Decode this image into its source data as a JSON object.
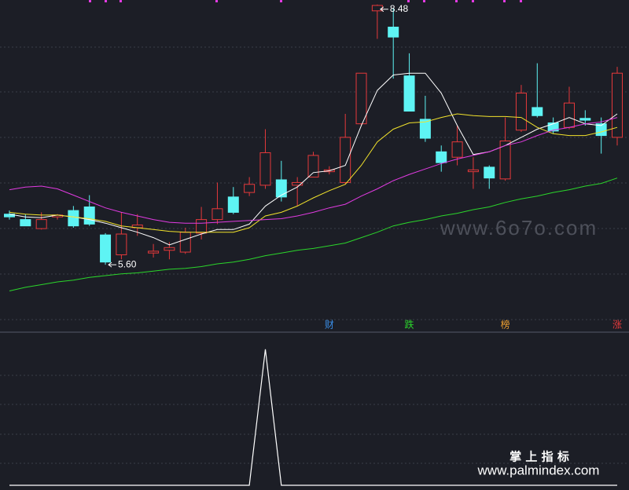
{
  "chart_data": {
    "type": "candlestick",
    "open": [
      6.16,
      6.1,
      6.0,
      6.13,
      6.2,
      6.24,
      5.93,
      5.71,
      6.01,
      5.73,
      5.76,
      5.74,
      5.95,
      6.1,
      6.35,
      6.4,
      6.48,
      6.54,
      6.48,
      6.57,
      6.63,
      6.51,
      7.16,
      8.41,
      8.23,
      7.69,
      7.21,
      6.85,
      6.79,
      6.63,
      6.68,
      6.55,
      7.09,
      7.34,
      7.17,
      7.12,
      7.22,
      7.16,
      7.01
    ],
    "high": [
      6.2,
      6.16,
      6.18,
      6.16,
      6.25,
      6.37,
      5.95,
      6.18,
      6.16,
      5.83,
      5.85,
      6.01,
      6.24,
      6.51,
      6.46,
      6.57,
      7.1,
      6.75,
      6.57,
      6.85,
      6.69,
      7.27,
      7.72,
      8.48,
      8.44,
      7.94,
      7.47,
      6.92,
      7.14,
      6.79,
      6.7,
      7.23,
      7.59,
      7.83,
      7.23,
      7.57,
      7.31,
      7.23,
      7.79
    ],
    "low": [
      6.1,
      6.03,
      5.99,
      6.1,
      6.01,
      6.03,
      5.6,
      5.66,
      5.92,
      5.68,
      5.66,
      5.72,
      5.88,
      6.05,
      6.16,
      6.36,
      6.44,
      6.3,
      6.25,
      6.57,
      6.6,
      6.49,
      7.14,
      8.1,
      7.66,
      7.3,
      6.96,
      6.63,
      6.7,
      6.44,
      6.44,
      6.53,
      7.07,
      7.23,
      7.05,
      7.1,
      7.14,
      6.83,
      6.92
    ],
    "close": [
      6.13,
      6.03,
      6.1,
      6.15,
      6.03,
      6.05,
      5.63,
      5.94,
      6.04,
      5.75,
      5.79,
      5.96,
      6.1,
      6.22,
      6.18,
      6.49,
      6.84,
      6.35,
      6.51,
      6.81,
      6.65,
      7.01,
      7.72,
      8.47,
      8.12,
      7.3,
      7.0,
      6.73,
      6.96,
      6.65,
      6.56,
      6.97,
      7.5,
      7.25,
      7.08,
      7.39,
      7.2,
      7.03,
      7.72
    ],
    "up_color": "#e5393b",
    "down_color": "#5ef4f4",
    "ylim": [
      4.88,
      8.53
    ],
    "series": [
      {
        "color": "#ffffff",
        "values": [
          6.16,
          6.13,
          6.12,
          6.15,
          6.13,
          6.1,
          6.06,
          6.01,
          5.96,
          5.9,
          5.82,
          5.88,
          5.94,
          5.99,
          5.99,
          6.05,
          6.25,
          6.37,
          6.46,
          6.62,
          6.64,
          6.7,
          7.14,
          7.53,
          7.7,
          7.72,
          7.72,
          7.5,
          7.14,
          6.82,
          6.85,
          6.92,
          7.01,
          7.1,
          7.16,
          7.23,
          7.16,
          7.14,
          7.27
        ]
      },
      {
        "color": "#f2e32c",
        "values": [
          6.18,
          6.16,
          6.15,
          6.15,
          6.13,
          6.11,
          6.08,
          6.03,
          6.01,
          5.99,
          5.97,
          5.96,
          5.96,
          5.96,
          5.96,
          6.01,
          6.14,
          6.18,
          6.25,
          6.34,
          6.42,
          6.49,
          6.7,
          6.96,
          7.1,
          7.17,
          7.18,
          7.23,
          7.27,
          7.25,
          7.24,
          7.24,
          7.23,
          7.12,
          7.05,
          7.03,
          7.03,
          7.07,
          7.12
        ]
      },
      {
        "color": "#e23be2",
        "values": [
          6.43,
          6.46,
          6.47,
          6.44,
          6.37,
          6.3,
          6.23,
          6.18,
          6.14,
          6.1,
          6.07,
          6.06,
          6.06,
          6.07,
          6.08,
          6.09,
          6.1,
          6.11,
          6.14,
          6.18,
          6.23,
          6.27,
          6.36,
          6.44,
          6.53,
          6.6,
          6.66,
          6.72,
          6.77,
          6.81,
          6.85,
          6.92,
          6.96,
          7.03,
          7.09,
          7.12,
          7.16,
          7.18,
          7.23
        ]
      },
      {
        "color": "#2bd62b",
        "values": [
          5.31,
          5.35,
          5.38,
          5.41,
          5.43,
          5.46,
          5.48,
          5.5,
          5.51,
          5.53,
          5.55,
          5.56,
          5.58,
          5.61,
          5.63,
          5.66,
          5.7,
          5.73,
          5.76,
          5.78,
          5.81,
          5.84,
          5.9,
          5.96,
          6.03,
          6.07,
          6.1,
          6.14,
          6.17,
          6.21,
          6.24,
          6.29,
          6.33,
          6.36,
          6.4,
          6.43,
          6.47,
          6.5,
          6.56
        ]
      }
    ],
    "annotations": [
      8.48,
      {
        "value": 5.6,
        "label": "5.60"
      }
    ],
    "signals": [
      null,
      null,
      null,
      null,
      null,
      null,
      null,
      null,
      null,
      null,
      null,
      null,
      null,
      null,
      null,
      null,
      null,
      null,
      null,
      null,
      {
        "text": "财",
        "color": "#3a8ee6"
      },
      null,
      null,
      null,
      null,
      {
        "text": "跌",
        "color": "#2bd62b"
      },
      null,
      null,
      null,
      null,
      null,
      {
        "text": "榜",
        "color": "#f0a030"
      },
      null,
      null,
      null,
      null,
      null,
      null,
      {
        "text": "涨",
        "color": "#e5393b"
      }
    ],
    "indicator": {
      "type": "line",
      "color": "#ffffff",
      "ylim": [
        0,
        1.12
      ],
      "values": [
        0,
        0,
        0,
        0,
        0,
        0,
        0,
        0,
        0,
        0,
        0,
        0,
        0,
        0,
        0,
        0,
        1,
        0,
        0,
        0,
        0,
        0,
        0,
        0,
        0,
        0,
        0,
        0,
        0,
        0,
        0,
        0,
        0,
        0,
        0,
        0,
        0,
        0,
        0
      ]
    }
  },
  "watermarks": {
    "site": "www.6o7o.com",
    "brand": "掌 上 指 标",
    "url": "www.palmindex.com"
  }
}
